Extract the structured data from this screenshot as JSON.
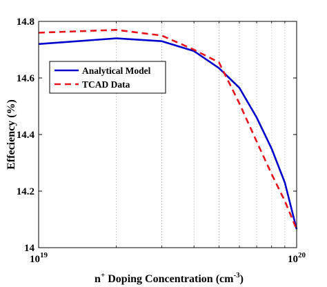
{
  "chart_data": {
    "type": "line",
    "title": "",
    "xlabel": {
      "base": "n",
      "sup": "+",
      "main": " Doping Concentration (cm",
      "exp": "-3",
      "tail": ")"
    },
    "ylabel": "Effeciency (%)",
    "x_scale": "log",
    "xlim": [
      1e+19,
      1e+20
    ],
    "ylim": [
      14.0,
      14.8
    ],
    "grid": "x-log-minor",
    "legend_position": "upper-left",
    "x_ticks": [
      {
        "value": 1e+19,
        "base": "10",
        "exp": "19"
      },
      {
        "value": 1e+20,
        "base": "10",
        "exp": "20"
      }
    ],
    "y_ticks": [
      {
        "value": 14.0,
        "label": "14"
      },
      {
        "value": 14.2,
        "label": "14.2"
      },
      {
        "value": 14.4,
        "label": "14.4"
      },
      {
        "value": 14.6,
        "label": "14.6"
      },
      {
        "value": 14.8,
        "label": "14.8"
      }
    ],
    "series": [
      {
        "name": "Analytical Model",
        "color": "#0000cc",
        "style": "solid",
        "x": [
          1e+19,
          2e+19,
          3e+19,
          4e+19,
          5e+19,
          6e+19,
          7e+19,
          8e+19,
          9e+19,
          1e+20
        ],
        "y": [
          14.72,
          14.74,
          14.73,
          14.695,
          14.635,
          14.565,
          14.46,
          14.35,
          14.23,
          14.065
        ]
      },
      {
        "name": "TCAD Data",
        "color": "#e8141c",
        "style": "dashed",
        "x": [
          1e+19,
          2e+19,
          3e+19,
          4e+19,
          5e+19,
          6e+19,
          7e+19,
          8e+19,
          9e+19,
          1e+20
        ],
        "y": [
          14.76,
          14.77,
          14.75,
          14.7,
          14.655,
          14.51,
          14.375,
          14.26,
          14.165,
          14.065
        ]
      }
    ]
  }
}
